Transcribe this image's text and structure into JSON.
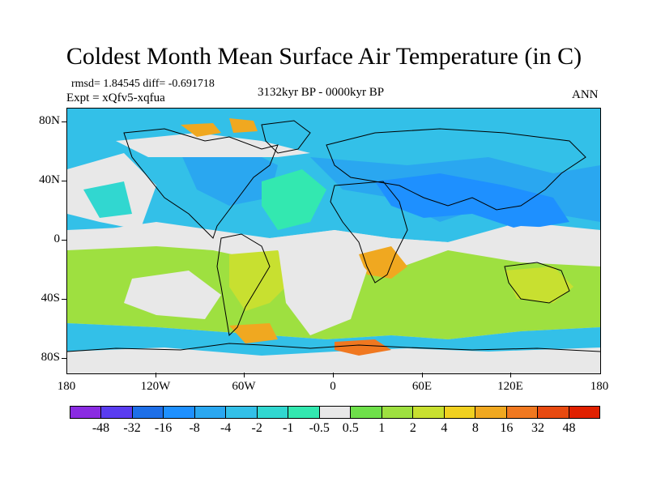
{
  "title": "Coldest Month Mean Surface Air Temperature (in C)",
  "stats": "rmsd= 1.84545 diff= -0.691718",
  "experiment": "Expt = xQfv5-xqfua",
  "period": "3132kyr BP - 0000kyr BP",
  "season": "ANN",
  "map": {
    "lat_labels": [
      "80N",
      "40N",
      "0",
      "40S",
      "80S"
    ],
    "lon_labels": [
      "180",
      "120W",
      "60W",
      "0",
      "60E",
      "120E",
      "180"
    ]
  },
  "colorbar": {
    "colors": [
      "#8a2be2",
      "#5a3cf0",
      "#1e6fe8",
      "#1e90ff",
      "#2aa7f0",
      "#33c0e8",
      "#31d7d0",
      "#33e8b0",
      "#e8e8e8",
      "#6ee04a",
      "#9ee040",
      "#c8e030",
      "#f0d020",
      "#f0a820",
      "#f07820",
      "#e84a10",
      "#e02000"
    ],
    "labels": [
      "-48",
      "-32",
      "-16",
      "-8",
      "-4",
      "-2",
      "-1",
      "-0.5",
      "0.5",
      "1",
      "2",
      "4",
      "8",
      "16",
      "32",
      "48"
    ]
  },
  "legend_colors": {
    "cold": "#1e90ff",
    "cool": "#33c0e8",
    "neutral": "#e8e8e8",
    "warm": "#9ee040",
    "hot": "#f0a820"
  }
}
